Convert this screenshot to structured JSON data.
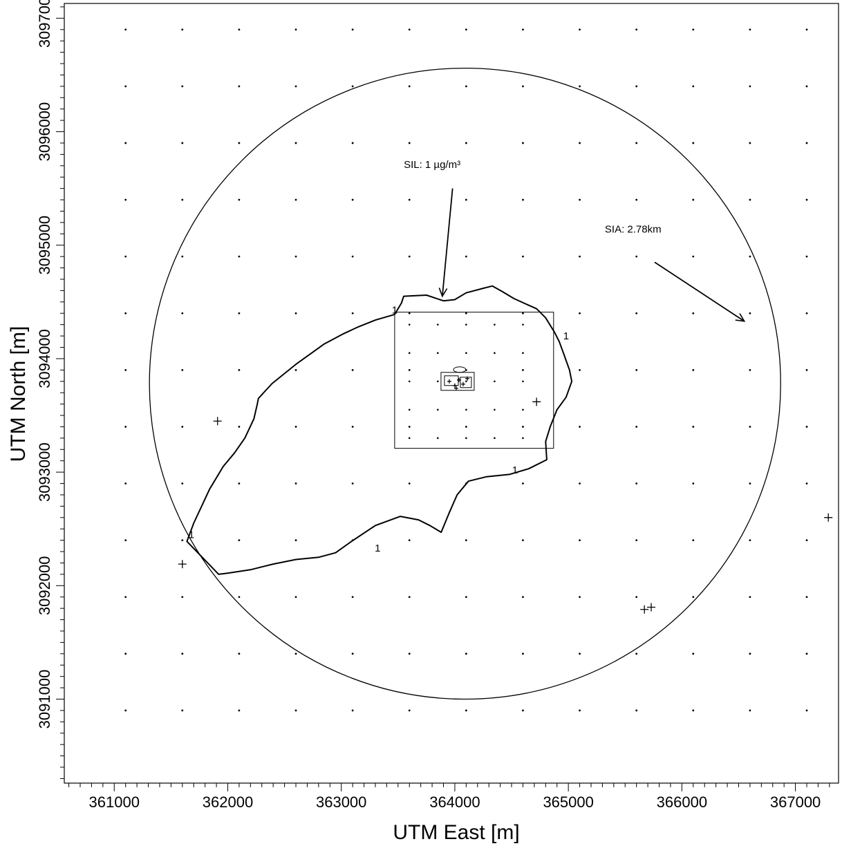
{
  "chart_data": {
    "type": "contour-map",
    "xlabel": "UTM East [m]",
    "ylabel": "UTM North [m]",
    "xlim": [
      360560,
      367380
    ],
    "ylim": [
      3090260,
      3097130
    ],
    "x_ticks": [
      361000,
      362000,
      363000,
      364000,
      365000,
      366000,
      367000
    ],
    "y_ticks": [
      3091000,
      3092000,
      3093000,
      3094000,
      3095000,
      3096000,
      3097000
    ],
    "x_tick_labels": [
      "361000",
      "362000",
      "363000",
      "364000",
      "365000",
      "366000",
      "367000"
    ],
    "y_tick_labels": [
      "3091000",
      "3092000",
      "3093000",
      "3094000",
      "3095000",
      "3096000",
      "3097000"
    ],
    "receptor_grid": {
      "x_start": 361100,
      "x_end": 367100,
      "dx": 500,
      "y_start": 3090900,
      "y_end": 3096900,
      "dy": 500,
      "fine_x_start": 363600,
      "fine_x_end": 364600,
      "fine_dx": 250,
      "fine_y_start": 3093300,
      "fine_y_end": 3094400,
      "fine_dy": 250
    },
    "fine_grid_boundary": [
      [
        363470,
        3093210
      ],
      [
        364870,
        3093210
      ],
      [
        364870,
        3094410
      ],
      [
        363470,
        3094410
      ]
    ],
    "sia_circle": {
      "center": [
        364090,
        3093780
      ],
      "radius_m": 2780
    },
    "contour_level": "1",
    "contour_1": [
      [
        363530,
        3094490
      ],
      [
        363550,
        3094550
      ],
      [
        363750,
        3094560
      ],
      [
        363900,
        3094510
      ],
      [
        364000,
        3094520
      ],
      [
        364100,
        3094580
      ],
      [
        364250,
        3094620
      ],
      [
        364330,
        3094640
      ],
      [
        364420,
        3094590
      ],
      [
        364520,
        3094530
      ],
      [
        364630,
        3094480
      ],
      [
        364720,
        3094440
      ],
      [
        364800,
        3094360
      ],
      [
        364880,
        3094230
      ],
      [
        364920,
        3094150
      ],
      [
        364960,
        3094040
      ],
      [
        365010,
        3093900
      ],
      [
        365030,
        3093800
      ],
      [
        364980,
        3093660
      ],
      [
        364900,
        3093550
      ],
      [
        364840,
        3093400
      ],
      [
        364800,
        3093270
      ],
      [
        364810,
        3093110
      ],
      [
        364650,
        3093030
      ],
      [
        364480,
        3092980
      ],
      [
        364280,
        3092960
      ],
      [
        364120,
        3092920
      ],
      [
        364020,
        3092800
      ],
      [
        363950,
        3092640
      ],
      [
        363880,
        3092470
      ],
      [
        363780,
        3092530
      ],
      [
        363680,
        3092580
      ],
      [
        363520,
        3092610
      ],
      [
        363300,
        3092530
      ],
      [
        363090,
        3092390
      ],
      [
        362950,
        3092290
      ],
      [
        362800,
        3092250
      ],
      [
        362600,
        3092230
      ],
      [
        362400,
        3092190
      ],
      [
        362200,
        3092140
      ],
      [
        362000,
        3092110
      ],
      [
        361920,
        3092100
      ],
      [
        361640,
        3092390
      ],
      [
        361700,
        3092550
      ],
      [
        361840,
        3092850
      ],
      [
        361960,
        3093050
      ],
      [
        362060,
        3093170
      ],
      [
        362150,
        3093300
      ],
      [
        362230,
        3093470
      ],
      [
        362260,
        3093600
      ],
      [
        362270,
        3093650
      ],
      [
        362390,
        3093780
      ],
      [
        362600,
        3093950
      ],
      [
        362850,
        3094130
      ],
      [
        363020,
        3094220
      ],
      [
        363150,
        3094280
      ],
      [
        363300,
        3094340
      ],
      [
        363470,
        3094390
      ]
    ],
    "contour_labels": [
      [
        363320,
        3092330
      ],
      [
        364530,
        3093020
      ],
      [
        364980,
        3094200
      ],
      [
        363470,
        3094430
      ],
      [
        361680,
        3092450
      ]
    ],
    "discrete_receptors": [
      [
        361600,
        3092190
      ],
      [
        361910,
        3093450
      ],
      [
        364720,
        3093620
      ],
      [
        365670,
        3091790
      ],
      [
        365730,
        3091810
      ],
      [
        367290,
        3092600
      ]
    ],
    "facility": {
      "label_center": [
        364000,
        3093800
      ]
    },
    "annotations": [
      {
        "text": "SIL: 1 µg/m³",
        "text_pos": [
          363800,
          3095680
        ],
        "arrow_from": [
          363980,
          3095500
        ],
        "arrow_to": [
          363890,
          3094550
        ]
      },
      {
        "text": "SIA: 2.78km",
        "text_pos": [
          365570,
          3095110
        ],
        "arrow_from": [
          365760,
          3094850
        ],
        "arrow_to": [
          366550,
          3094330
        ]
      }
    ]
  }
}
